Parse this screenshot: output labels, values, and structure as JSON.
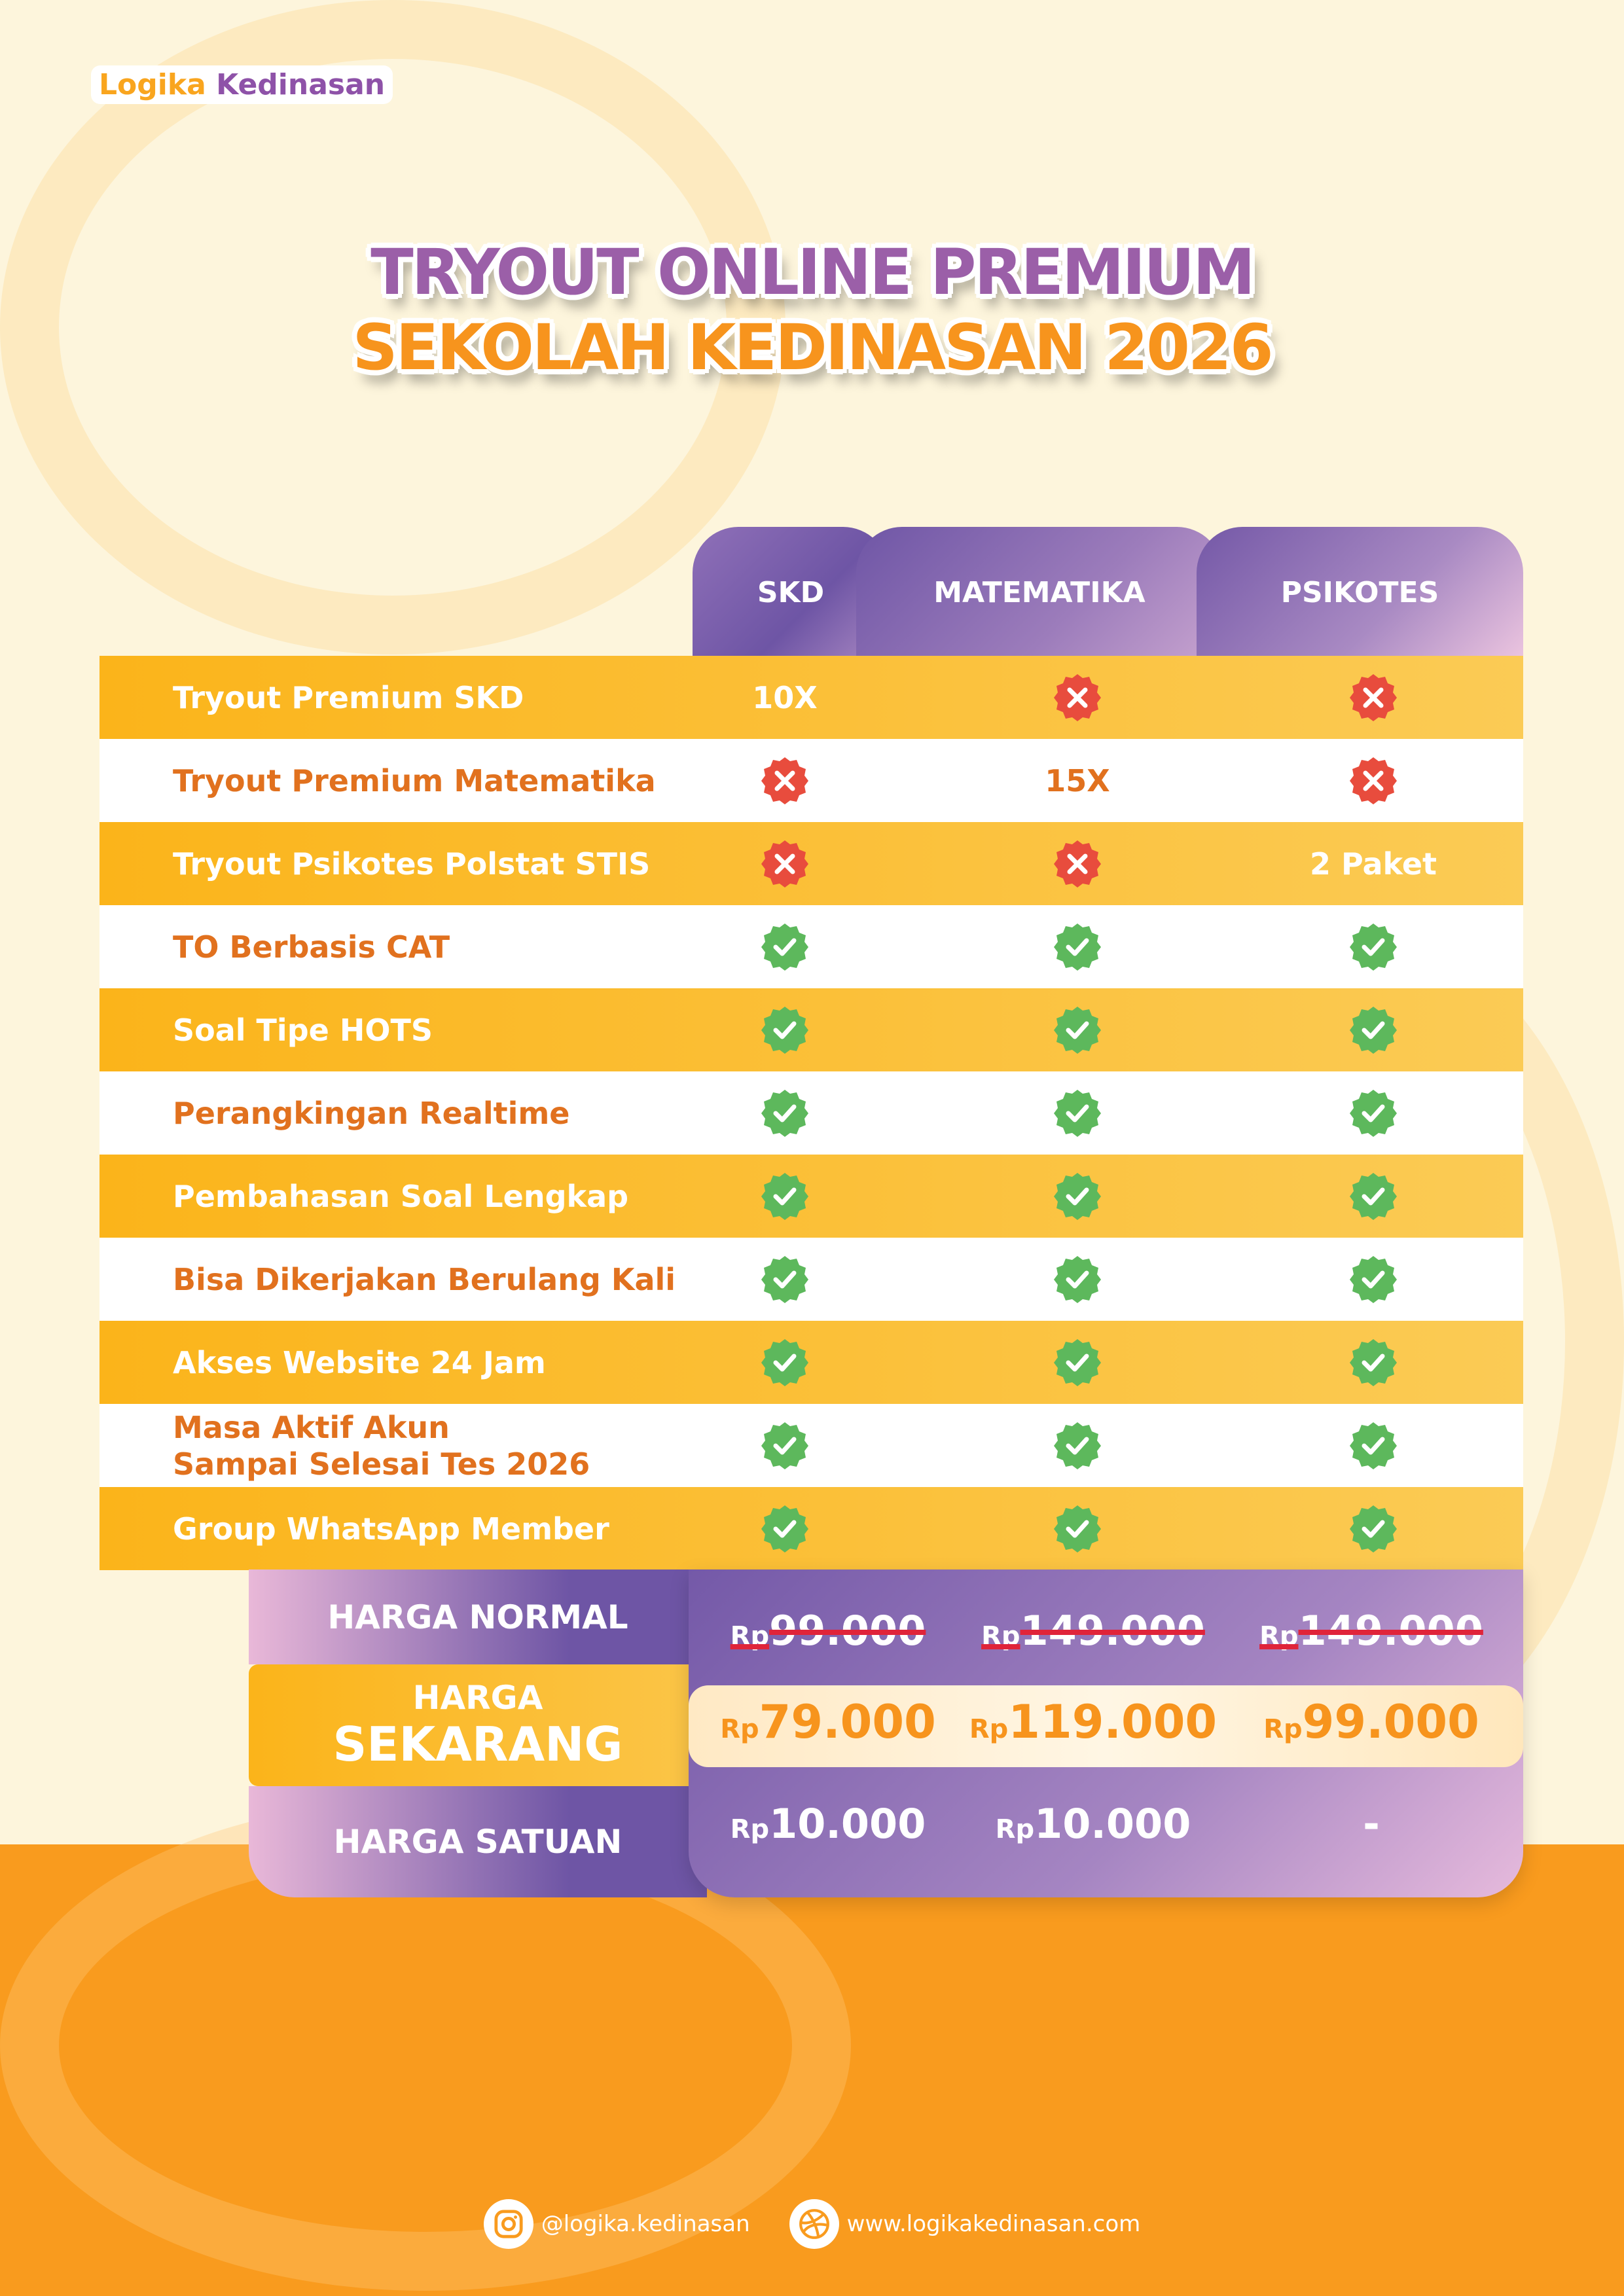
{
  "brand": {
    "logo_part1": "Logika",
    "logo_part2": "Kedinasan"
  },
  "title": {
    "line1": "TRYOUT ONLINE PREMIUM",
    "line2": "SEKOLAH KEDINASAN 2026"
  },
  "colors": {
    "purple": "#6E55A5",
    "yellow": "#FBB41A",
    "orange": "#F99B1E",
    "cream": "#FDF5DC",
    "check": "#5DB85C",
    "cross": "#E84C3D"
  },
  "columns": [
    "SKD",
    "MATEMATIKA",
    "PSIKOTES"
  ],
  "rows": [
    {
      "label": "Tryout Premium SKD",
      "values": [
        "10X",
        "cross",
        "cross"
      ]
    },
    {
      "label": "Tryout Premium Matematika",
      "values": [
        "cross",
        "15X",
        "cross"
      ]
    },
    {
      "label": "Tryout Psikotes Polstat STIS",
      "values": [
        "cross",
        "cross",
        "2 Paket"
      ]
    },
    {
      "label": "TO Berbasis CAT",
      "values": [
        "check",
        "check",
        "check"
      ]
    },
    {
      "label": "Soal Tipe HOTS",
      "values": [
        "check",
        "check",
        "check"
      ]
    },
    {
      "label": "Perangkingan Realtime",
      "values": [
        "check",
        "check",
        "check"
      ]
    },
    {
      "label": "Pembahasan Soal Lengkap",
      "values": [
        "check",
        "check",
        "check"
      ]
    },
    {
      "label": "Bisa Dikerjakan Berulang Kali",
      "values": [
        "check",
        "check",
        "check"
      ]
    },
    {
      "label": "Akses Website 24 Jam",
      "values": [
        "check",
        "check",
        "check"
      ]
    },
    {
      "label": "Masa Aktif Akun\nSampai Selesai Tes 2026",
      "values": [
        "check",
        "check",
        "check"
      ]
    },
    {
      "label": "Group WhatsApp Member",
      "values": [
        "check",
        "check",
        "check"
      ]
    }
  ],
  "pricing": {
    "normal_label": "HARGA NORMAL",
    "now_label_1": "HARGA",
    "now_label_2": "SEKARANG",
    "unit_label": "HARGA SATUAN",
    "currency": "Rp",
    "normal": [
      "99.000",
      "149.000",
      "149.000"
    ],
    "now": [
      "79.000",
      "119.000",
      "99.000"
    ],
    "unit": [
      "10.000",
      "10.000",
      "-"
    ]
  },
  "footer": {
    "instagram": "@logika.kedinasan",
    "website": "www.logikakedinasan.com"
  }
}
